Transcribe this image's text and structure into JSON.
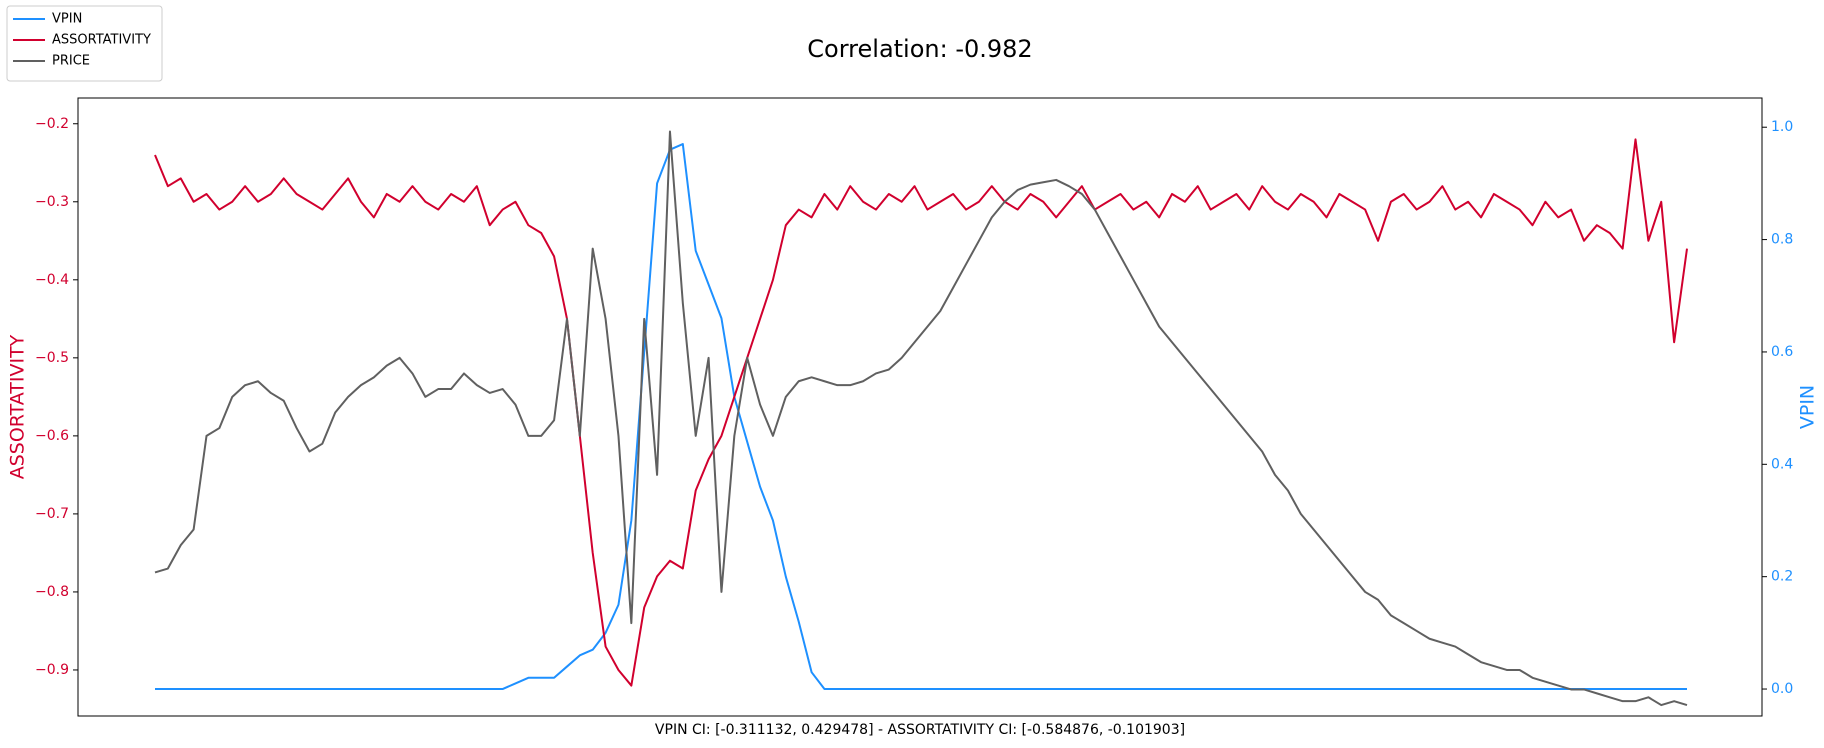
{
  "chart_data": {
    "type": "line",
    "title": "Correlation: -0.982",
    "annotation": "VPIN CI: [-0.311132, 0.429478] - ASSORTATIVITY CI: [-0.584876, -0.101903]",
    "ylabel": "ASSORTATIVITY",
    "y2label": "VPIN",
    "ylim": [
      -0.959,
      -0.167
    ],
    "yticks": [
      {
        "value": -0.9,
        "label": "−0.9"
      },
      {
        "value": -0.8,
        "label": "−0.8"
      },
      {
        "value": -0.7,
        "label": "−0.7"
      },
      {
        "value": -0.6,
        "label": "−0.6"
      },
      {
        "value": -0.5,
        "label": "−0.5"
      },
      {
        "value": -0.4,
        "label": "−0.4"
      },
      {
        "value": -0.3,
        "label": "−0.3"
      },
      {
        "value": -0.2,
        "label": "−0.2"
      }
    ],
    "y2lim": [
      -0.048,
      1.052
    ],
    "y2ticks": [
      {
        "value": 0,
        "label": "0.0"
      },
      {
        "value": 0.2,
        "label": "0.2"
      },
      {
        "value": 0.4,
        "label": "0.4"
      },
      {
        "value": 0.6,
        "label": "0.6"
      },
      {
        "value": 0.8,
        "label": "0.8"
      },
      {
        "value": 1,
        "label": "1.0"
      }
    ],
    "ycolor": "#d1002e",
    "y2color": "#1e90ff",
    "legend": "upper left",
    "series": [
      {
        "name": "VPIN",
        "color": "#1e90ff",
        "axis": "y2",
        "values": [
          0,
          0,
          0,
          0,
          0,
          0,
          0,
          0,
          0,
          0,
          0,
          0,
          0,
          0,
          0,
          0,
          0,
          0,
          0,
          0,
          0,
          0,
          0,
          0,
          0,
          0,
          0,
          0,
          0.01,
          0.02,
          0.02,
          0.02,
          0.04,
          0.06,
          0.07,
          0.1,
          0.15,
          0.3,
          0.6,
          0.9,
          0.96,
          0.97,
          0.78,
          0.72,
          0.66,
          0.52,
          0.44,
          0.36,
          0.3,
          0.2,
          0.12,
          0.03,
          0,
          0,
          0,
          0,
          0,
          0,
          0,
          0,
          0,
          0,
          0,
          0,
          0,
          0,
          0,
          0,
          0,
          0,
          0,
          0,
          0,
          0,
          0,
          0,
          0,
          0,
          0,
          0,
          0,
          0,
          0,
          0,
          0,
          0,
          0,
          0,
          0,
          0,
          0,
          0,
          0,
          0,
          0,
          0,
          0,
          0,
          0,
          0,
          0,
          0,
          0,
          0,
          0,
          0,
          0,
          0,
          0,
          0,
          0,
          0,
          0,
          0,
          0,
          0,
          0,
          0,
          0,
          0
        ]
      },
      {
        "name": "ASSORTATIVITY",
        "color": "#d1002e",
        "axis": "y",
        "values": [
          -0.24,
          -0.28,
          -0.27,
          -0.3,
          -0.29,
          -0.31,
          -0.3,
          -0.28,
          -0.3,
          -0.29,
          -0.27,
          -0.29,
          -0.3,
          -0.31,
          -0.29,
          -0.27,
          -0.3,
          -0.32,
          -0.29,
          -0.3,
          -0.28,
          -0.3,
          -0.31,
          -0.29,
          -0.3,
          -0.28,
          -0.33,
          -0.31,
          -0.3,
          -0.33,
          -0.34,
          -0.37,
          -0.45,
          -0.6,
          -0.75,
          -0.87,
          -0.9,
          -0.92,
          -0.82,
          -0.78,
          -0.76,
          -0.77,
          -0.67,
          -0.63,
          -0.6,
          -0.55,
          -0.5,
          -0.45,
          -0.4,
          -0.33,
          -0.31,
          -0.32,
          -0.29,
          -0.31,
          -0.28,
          -0.3,
          -0.31,
          -0.29,
          -0.3,
          -0.28,
          -0.31,
          -0.3,
          -0.29,
          -0.31,
          -0.3,
          -0.28,
          -0.3,
          -0.31,
          -0.29,
          -0.3,
          -0.32,
          -0.3,
          -0.28,
          -0.31,
          -0.3,
          -0.29,
          -0.31,
          -0.3,
          -0.32,
          -0.29,
          -0.3,
          -0.28,
          -0.31,
          -0.3,
          -0.29,
          -0.31,
          -0.28,
          -0.3,
          -0.31,
          -0.29,
          -0.3,
          -0.32,
          -0.29,
          -0.3,
          -0.31,
          -0.35,
          -0.3,
          -0.29,
          -0.31,
          -0.3,
          -0.28,
          -0.31,
          -0.3,
          -0.32,
          -0.29,
          -0.3,
          -0.31,
          -0.33,
          -0.3,
          -0.32,
          -0.31,
          -0.35,
          -0.33,
          -0.34,
          -0.36,
          -0.22,
          -0.35,
          -0.3,
          -0.48,
          -0.36
        ]
      },
      {
        "name": "PRICE",
        "color": "#606060",
        "axis": "y",
        "values": [
          -0.775,
          -0.77,
          -0.74,
          -0.72,
          -0.6,
          -0.59,
          -0.55,
          -0.535,
          -0.53,
          -0.545,
          -0.555,
          -0.59,
          -0.62,
          -0.61,
          -0.57,
          -0.55,
          -0.535,
          -0.525,
          -0.51,
          -0.5,
          -0.52,
          -0.55,
          -0.54,
          -0.54,
          -0.52,
          -0.535,
          -0.545,
          -0.54,
          -0.56,
          -0.6,
          -0.6,
          -0.58,
          -0.45,
          -0.6,
          -0.36,
          -0.45,
          -0.6,
          -0.84,
          -0.45,
          -0.65,
          -0.21,
          -0.43,
          -0.6,
          -0.5,
          -0.8,
          -0.6,
          -0.5,
          -0.56,
          -0.6,
          -0.55,
          -0.53,
          -0.525,
          -0.53,
          -0.535,
          -0.535,
          -0.53,
          -0.52,
          -0.515,
          -0.5,
          -0.48,
          -0.46,
          -0.44,
          -0.41,
          -0.38,
          -0.35,
          -0.32,
          -0.3,
          -0.285,
          -0.278,
          -0.275,
          -0.272,
          -0.28,
          -0.29,
          -0.31,
          -0.34,
          -0.37,
          -0.4,
          -0.43,
          -0.46,
          -0.48,
          -0.5,
          -0.52,
          -0.54,
          -0.56,
          -0.58,
          -0.6,
          -0.62,
          -0.65,
          -0.67,
          -0.7,
          -0.72,
          -0.74,
          -0.76,
          -0.78,
          -0.8,
          -0.81,
          -0.83,
          -0.84,
          -0.85,
          -0.86,
          -0.865,
          -0.87,
          -0.88,
          -0.89,
          -0.895,
          -0.9,
          -0.9,
          -0.91,
          -0.915,
          -0.92,
          -0.925,
          -0.925,
          -0.93,
          -0.935,
          -0.94,
          -0.94,
          -0.935,
          -0.945,
          -0.94,
          -0.945
        ]
      }
    ]
  }
}
